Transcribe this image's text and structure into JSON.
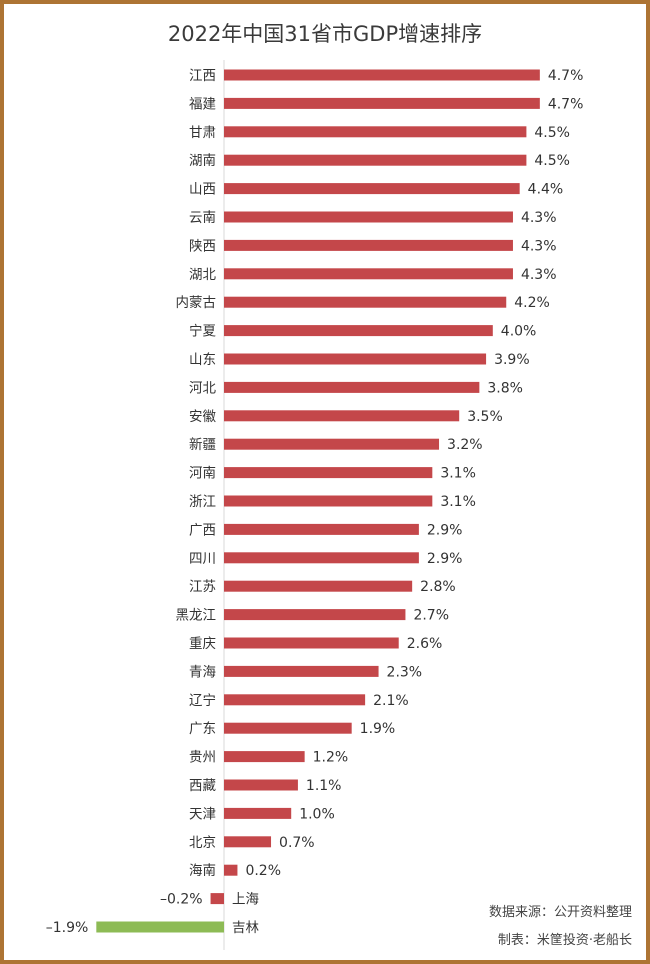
{
  "chart_data": {
    "type": "bar",
    "orientation": "horizontal",
    "title": "2022年中国31省市GDP增速排序",
    "categories": [
      "江西",
      "福建",
      "甘肃",
      "湖南",
      "山西",
      "云南",
      "陕西",
      "湖北",
      "内蒙古",
      "宁夏",
      "山东",
      "河北",
      "安徽",
      "新疆",
      "河南",
      "浙江",
      "广西",
      "四川",
      "江苏",
      "黑龙江",
      "重庆",
      "青海",
      "辽宁",
      "广东",
      "贵州",
      "西藏",
      "天津",
      "北京",
      "海南",
      "上海",
      "吉林"
    ],
    "values": [
      4.7,
      4.7,
      4.5,
      4.5,
      4.4,
      4.3,
      4.3,
      4.3,
      4.2,
      4.0,
      3.9,
      3.8,
      3.5,
      3.2,
      3.1,
      3.1,
      2.9,
      2.9,
      2.8,
      2.7,
      2.6,
      2.3,
      2.1,
      1.9,
      1.2,
      1.1,
      1.0,
      0.7,
      0.2,
      -0.2,
      -1.9
    ],
    "value_labels": [
      "4.7%",
      "4.7%",
      "4.5%",
      "4.5%",
      "4.4%",
      "4.3%",
      "4.3%",
      "4.3%",
      "4.2%",
      "4.0%",
      "3.9%",
      "3.8%",
      "3.5%",
      "3.2%",
      "3.1%",
      "3.1%",
      "2.9%",
      "2.9%",
      "2.8%",
      "2.7%",
      "2.6%",
      "2.3%",
      "2.1%",
      "1.9%",
      "1.2%",
      "1.1%",
      "1.0%",
      "0.7%",
      "0.2%",
      "-0.2%",
      "-1.9%"
    ],
    "xlabel": "",
    "ylabel": "",
    "xlim": [
      -1.9,
      4.7
    ],
    "colors": {
      "positive": "#c4474a",
      "negative_highlight": "#8dbb55",
      "negative": "#c4474a"
    },
    "highlight_index": 30,
    "grid": false,
    "legend": "none"
  },
  "notes": {
    "source": "数据来源：公开资料整理",
    "author": "制表：米筐投资·老船长"
  }
}
